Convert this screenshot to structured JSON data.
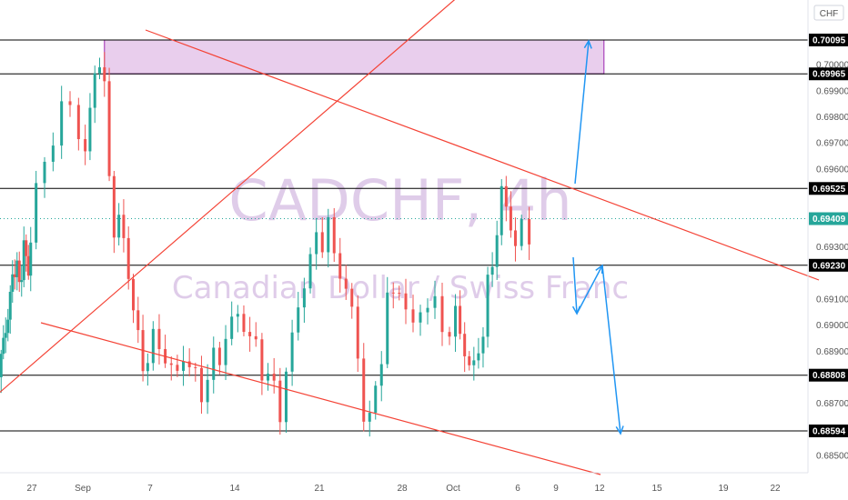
{
  "chart_data": {
    "type": "candlestick",
    "symbol": "CADCHF, 4h",
    "symbol_description": "Canadian Dollar / Swiss Franc",
    "currency": "CHF",
    "ylim": [
      0.6843,
      0.7019
    ],
    "price_ticks": [
      0.7,
      0.699,
      0.698,
      0.697,
      0.696,
      0.693,
      0.691,
      0.69,
      0.689,
      0.687,
      0.685
    ],
    "x_ticks": [
      "27",
      "Sep",
      "7",
      "14",
      "21",
      "28",
      "Oct",
      "6",
      "9",
      "12",
      "15",
      "19",
      "22"
    ],
    "current_price": 0.69409,
    "levels": [
      {
        "label": "0.70095",
        "price": 0.70095
      },
      {
        "label": "0.69965",
        "price": 0.69965
      },
      {
        "label": "0.69525",
        "price": 0.69525
      },
      {
        "label": "0.69230",
        "price": 0.6923
      },
      {
        "label": "0.68808",
        "price": 0.68808
      },
      {
        "label": "0.68594",
        "price": 0.68594
      }
    ],
    "current_price_label": "0.69409",
    "zone": {
      "top": 0.70095,
      "bottom": 0.69965,
      "color": "#e1bee7"
    },
    "colors": {
      "up": "#26a69a",
      "down": "#ef5350",
      "trendline": "#f44336",
      "arrow": "#2196f3",
      "level": "#000000",
      "price_tag": "#26a69a"
    }
  }
}
